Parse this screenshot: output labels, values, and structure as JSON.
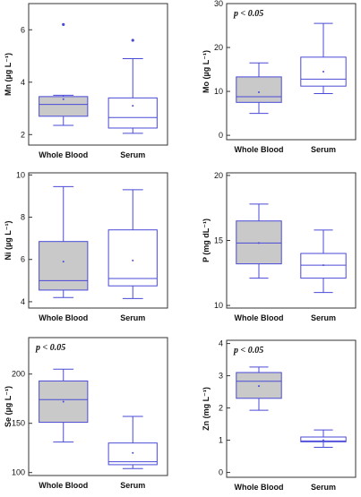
{
  "colors": {
    "box_stroke": "#4a4ad8",
    "whole_blood_fill": "#c9c9c9",
    "serum_fill": "#ffffff",
    "mean_marker": "#4a4ad8",
    "outlier": "#4a4ad8"
  },
  "chart_data": [
    {
      "type": "box",
      "ylabel": "Mn (µg L⁻¹)",
      "annotation": "",
      "ylim": [
        1.6,
        7.0
      ],
      "yticks": [
        2,
        4,
        6
      ],
      "categories": [
        "Whole Blood",
        "Serum"
      ],
      "boxes": [
        {
          "name": "Whole Blood",
          "min": 2.35,
          "q1": 2.7,
          "median": 3.15,
          "q3": 3.45,
          "max": 3.5,
          "mean": 3.35,
          "outliers": [
            6.2
          ]
        },
        {
          "name": "Serum",
          "min": 2.05,
          "q1": 2.25,
          "median": 2.65,
          "q3": 3.4,
          "max": 4.9,
          "mean": 3.1,
          "outliers": [
            5.6
          ]
        }
      ]
    },
    {
      "type": "box",
      "ylabel": "Mo (µg L⁻¹)",
      "annotation": "p < 0.05",
      "ylim": [
        -1,
        30
      ],
      "yticks": [
        0,
        10,
        20,
        30
      ],
      "categories": [
        "Whole Blood",
        "Serum"
      ],
      "boxes": [
        {
          "name": "Whole Blood",
          "min": 5.0,
          "q1": 7.5,
          "median": 8.8,
          "q3": 13.3,
          "max": 16.5,
          "mean": 9.8,
          "outliers": []
        },
        {
          "name": "Serum",
          "min": 9.5,
          "q1": 11.2,
          "median": 12.8,
          "q3": 17.8,
          "max": 25.5,
          "mean": 14.5,
          "outliers": []
        }
      ]
    },
    {
      "type": "box",
      "ylabel": "Ni (µg L⁻¹)",
      "annotation": "",
      "ylim": [
        3.7,
        10.1
      ],
      "yticks": [
        4,
        6,
        8,
        10
      ],
      "categories": [
        "Whole Blood",
        "Serum"
      ],
      "boxes": [
        {
          "name": "Whole Blood",
          "min": 4.2,
          "q1": 4.55,
          "median": 5.0,
          "q3": 6.85,
          "max": 9.45,
          "mean": 5.9,
          "outliers": []
        },
        {
          "name": "Serum",
          "min": 4.15,
          "q1": 4.75,
          "median": 5.1,
          "q3": 7.4,
          "max": 9.3,
          "mean": 5.95,
          "outliers": []
        }
      ]
    },
    {
      "type": "box",
      "ylabel": "P (mg dL⁻¹)",
      "annotation": "",
      "ylim": [
        9.8,
        20.2
      ],
      "yticks": [
        10,
        15,
        20
      ],
      "categories": [
        "Whole Blood",
        "Serum"
      ],
      "boxes": [
        {
          "name": "Whole Blood",
          "min": 12.1,
          "q1": 13.2,
          "median": 14.8,
          "q3": 16.5,
          "max": 17.8,
          "mean": 14.8,
          "outliers": []
        },
        {
          "name": "Serum",
          "min": 11.0,
          "q1": 12.1,
          "median": 13.1,
          "q3": 14.0,
          "max": 15.8,
          "mean": 13.1,
          "outliers": []
        }
      ]
    },
    {
      "type": "box",
      "ylabel": "Se (µg L⁻¹)",
      "annotation": "p < 0.05",
      "ylim": [
        97,
        237
      ],
      "yticks": [
        100,
        150,
        200
      ],
      "categories": [
        "Whole Blood",
        "Serum"
      ],
      "boxes": [
        {
          "name": "Whole Blood",
          "min": 131,
          "q1": 151,
          "median": 174,
          "q3": 193,
          "max": 205,
          "mean": 172,
          "outliers": []
        },
        {
          "name": "Serum",
          "min": 104,
          "q1": 108,
          "median": 111,
          "q3": 130,
          "max": 157,
          "mean": 120,
          "outliers": []
        }
      ]
    },
    {
      "type": "box",
      "ylabel": "Zn (mg L⁻¹)",
      "annotation": "p < 0.05",
      "ylim": [
        -0.15,
        4.1
      ],
      "yticks": [
        0,
        1,
        2,
        3,
        4
      ],
      "categories": [
        "Whole Blood",
        "Serum"
      ],
      "boxes": [
        {
          "name": "Whole Blood",
          "min": 1.93,
          "q1": 2.3,
          "median": 2.83,
          "q3": 3.1,
          "max": 3.27,
          "mean": 2.68,
          "outliers": []
        },
        {
          "name": "Serum",
          "min": 0.78,
          "q1": 0.95,
          "median": 0.98,
          "q3": 1.1,
          "max": 1.32,
          "mean": 1.0,
          "outliers": []
        }
      ]
    }
  ]
}
